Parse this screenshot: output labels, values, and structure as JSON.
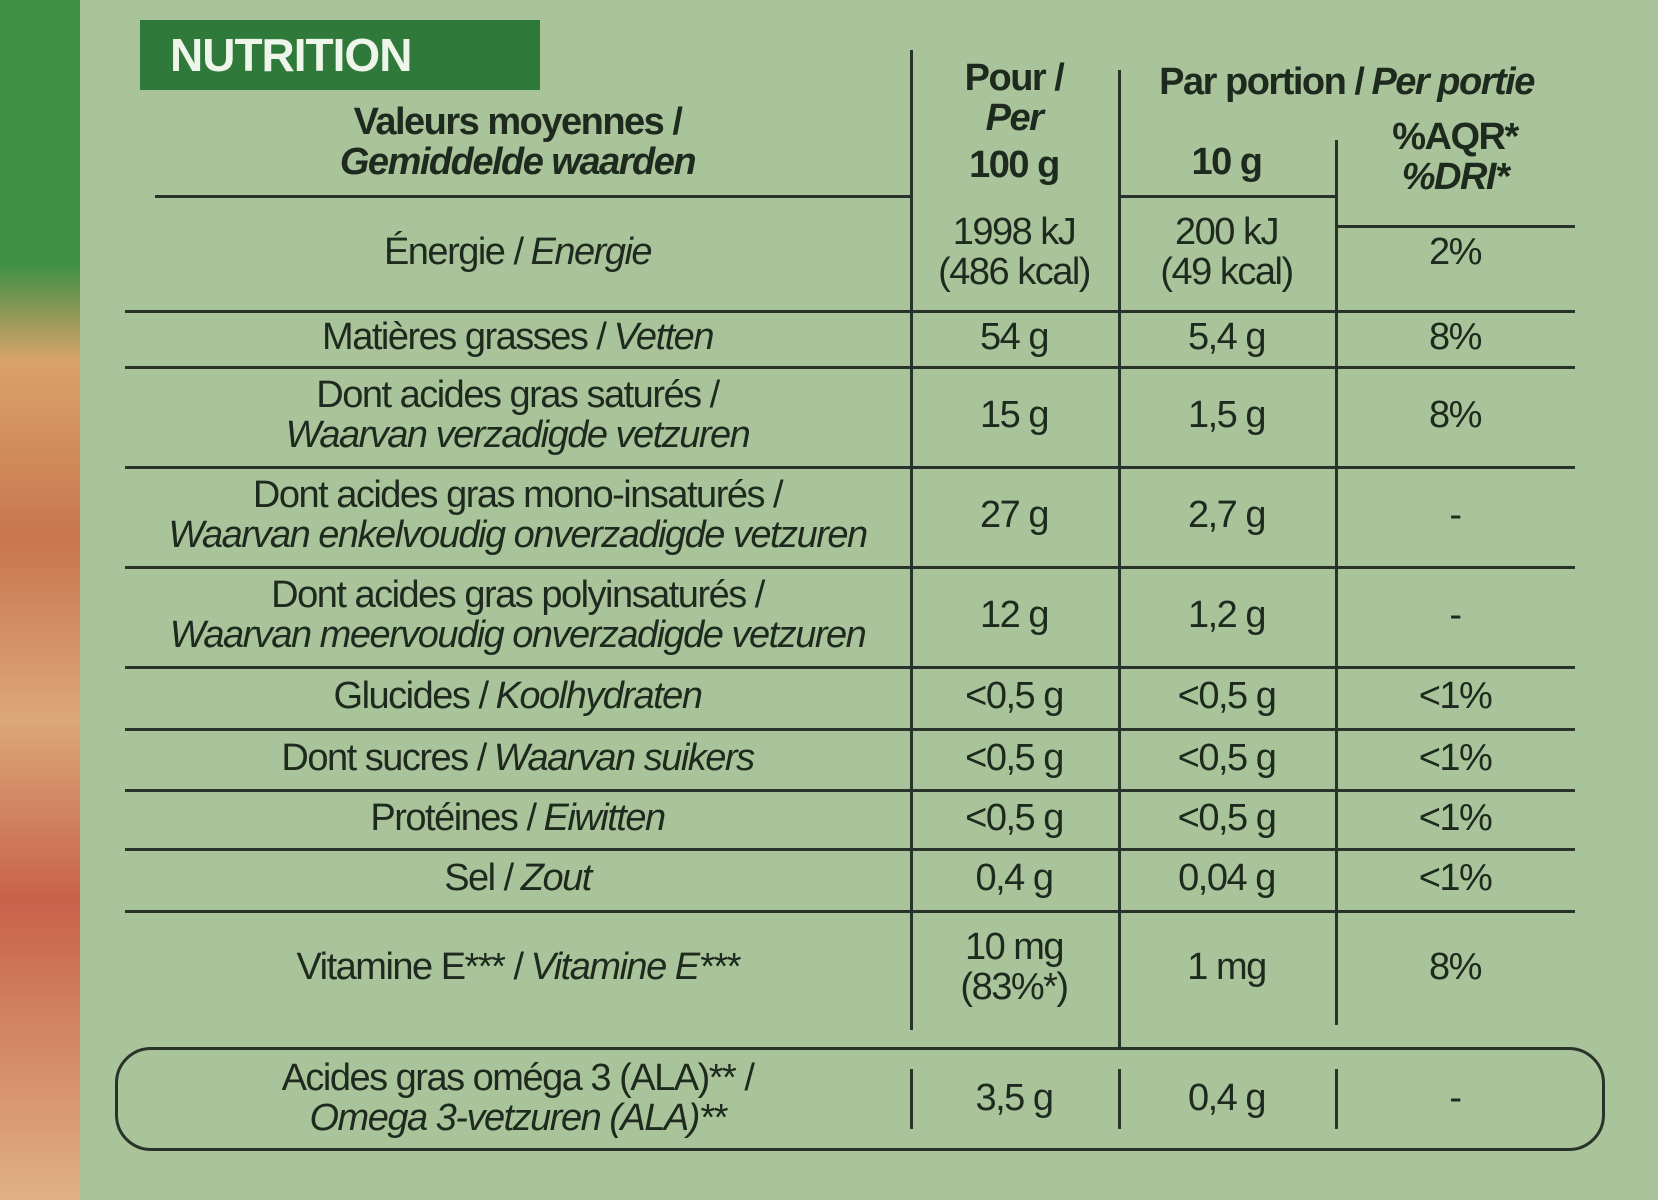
{
  "badge": "NUTRITION",
  "header": {
    "label_fr": "Valeurs moyennes /",
    "label_nl": "Gemiddelde waarden",
    "per_fr": "Pour /",
    "per_nl": "Per",
    "per_qty": "100 g",
    "portion_fr": "Par portion /",
    "portion_nl": "Per portie",
    "portion_qty": "10 g",
    "ri_fr": "%AQR*",
    "ri_nl": "%DRI*"
  },
  "rows": [
    {
      "fr": "Énergie /",
      "nl": "Energie",
      "per_100g": [
        "1998 kJ",
        "(486 kcal)"
      ],
      "per_portion": [
        "200 kJ",
        "(49 kcal)"
      ],
      "ri": "2%"
    },
    {
      "fr": "Matières grasses /",
      "nl": "Vetten",
      "per_100g": [
        "54 g"
      ],
      "per_portion": [
        "5,4 g"
      ],
      "ri": "8%"
    },
    {
      "fr": "Dont acides gras saturés /",
      "nl": "Waarvan verzadigde vetzuren",
      "per_100g": [
        "15 g"
      ],
      "per_portion": [
        "1,5 g"
      ],
      "ri": "8%"
    },
    {
      "fr": "Dont acides gras mono-insaturés /",
      "nl": "Waarvan enkelvoudig onverzadigde vetzuren",
      "per_100g": [
        "27 g"
      ],
      "per_portion": [
        "2,7 g"
      ],
      "ri": "-"
    },
    {
      "fr": "Dont acides gras polyinsaturés /",
      "nl": "Waarvan meervoudig onverzadigde vetzuren",
      "per_100g": [
        "12 g"
      ],
      "per_portion": [
        "1,2 g"
      ],
      "ri": "-"
    },
    {
      "fr": "Glucides /",
      "nl": "Koolhydraten",
      "per_100g": [
        "<0,5 g"
      ],
      "per_portion": [
        "<0,5 g"
      ],
      "ri": "<1%"
    },
    {
      "fr": "Dont sucres /",
      "nl": "Waarvan suikers",
      "per_100g": [
        "<0,5 g"
      ],
      "per_portion": [
        "<0,5 g"
      ],
      "ri": "<1%"
    },
    {
      "fr": "Protéines /",
      "nl": "Eiwitten",
      "per_100g": [
        "<0,5 g"
      ],
      "per_portion": [
        "<0,5 g"
      ],
      "ri": "<1%"
    },
    {
      "fr": "Sel /",
      "nl": "Zout",
      "per_100g": [
        "0,4 g"
      ],
      "per_portion": [
        "0,04 g"
      ],
      "ri": "<1%"
    },
    {
      "fr": "Vitamine E*** /",
      "nl": "Vitamine E***",
      "per_100g": [
        "10 mg",
        "(83%*)"
      ],
      "per_portion": [
        "1 mg"
      ],
      "ri": "8%"
    }
  ],
  "omega": {
    "fr": "Acides gras oméga 3 (ALA)** /",
    "nl": "Omega 3-vetzuren (ALA)**",
    "per_100g": "3,5 g",
    "per_portion": "0,4 g",
    "ri": "-"
  }
}
